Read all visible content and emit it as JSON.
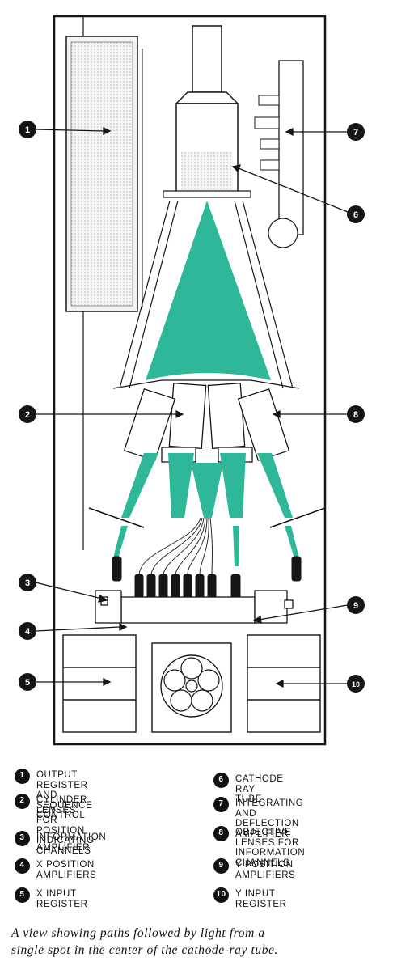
{
  "colors": {
    "beam": "#2fb79a",
    "ink": "#161616",
    "bg": "#ffffff"
  },
  "diagram": {
    "callouts": [
      {
        "num": "1",
        "side": "left"
      },
      {
        "num": "2",
        "side": "left"
      },
      {
        "num": "3",
        "side": "left"
      },
      {
        "num": "4",
        "side": "left"
      },
      {
        "num": "5",
        "side": "left"
      },
      {
        "num": "6",
        "side": "right"
      },
      {
        "num": "7",
        "side": "right"
      },
      {
        "num": "8",
        "side": "right"
      },
      {
        "num": "9",
        "side": "right"
      },
      {
        "num": "10",
        "side": "right"
      }
    ]
  },
  "legend": {
    "items": [
      {
        "num": "1",
        "text": "Output register and\nsequence control"
      },
      {
        "num": "2",
        "text": "Cylinder lenses for\nposition indicating\nchannels"
      },
      {
        "num": "3",
        "text": "Information amplifier"
      },
      {
        "num": "4",
        "text": "X position amplifiers"
      },
      {
        "num": "5",
        "text": "X input register"
      },
      {
        "num": "6",
        "text": "Cathode ray tube"
      },
      {
        "num": "7",
        "text": "Integrating and\ndeflection amplifier"
      },
      {
        "num": "8",
        "text": "Objective lenses for\ninformation channels"
      },
      {
        "num": "9",
        "text": "Y position amplifiers"
      },
      {
        "num": "10",
        "text": "Y input register"
      }
    ]
  },
  "caption": {
    "line1": "A view showing paths followed by light from a",
    "line2": "single spot in the center of the cathode-ray tube."
  }
}
